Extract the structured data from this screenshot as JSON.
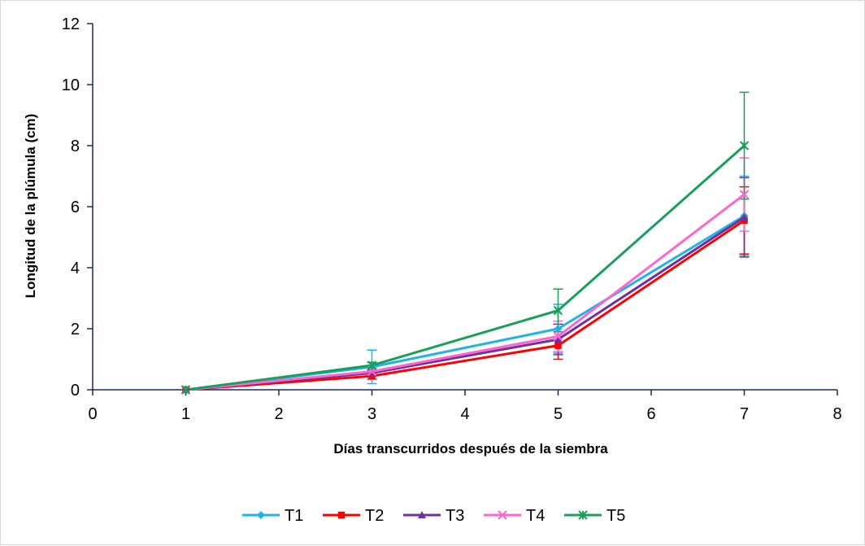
{
  "chart_data": {
    "type": "line",
    "title": "",
    "xlabel": "Días transcurridos después de la siembra",
    "ylabel": "Longitud de la plúmula (cm)",
    "xlim": [
      0,
      8
    ],
    "ylim": [
      0,
      12
    ],
    "x_ticks": [
      0,
      1,
      2,
      3,
      4,
      5,
      6,
      7,
      8
    ],
    "y_ticks": [
      0,
      2,
      4,
      6,
      8,
      10,
      12
    ],
    "grid": false,
    "legend_position": "bottom",
    "x": [
      1,
      3,
      5,
      7
    ],
    "series": [
      {
        "name": "T1",
        "color": "#1fb4e6",
        "marker": "diamond",
        "values": [
          0.0,
          0.75,
          2.0,
          5.7
        ],
        "errors": [
          0,
          0.55,
          0.8,
          1.3
        ]
      },
      {
        "name": "T2",
        "color": "#ff0000",
        "marker": "square",
        "values": [
          0.0,
          0.45,
          1.45,
          5.55
        ],
        "errors": [
          0,
          0.1,
          0.45,
          1.1
        ]
      },
      {
        "name": "T3",
        "color": "#7030a0",
        "marker": "triangle",
        "values": [
          0.0,
          0.55,
          1.65,
          5.65
        ],
        "errors": [
          0,
          0.1,
          0.5,
          1.3
        ]
      },
      {
        "name": "T4",
        "color": "#ff66cc",
        "marker": "x",
        "values": [
          0.0,
          0.6,
          1.75,
          6.4
        ],
        "errors": [
          0,
          0.1,
          0.5,
          1.2
        ]
      },
      {
        "name": "T5",
        "color": "#18a05a",
        "marker": "star",
        "values": [
          0.0,
          0.8,
          2.6,
          8.0
        ],
        "errors": [
          0,
          0.1,
          0.7,
          1.75
        ]
      }
    ]
  }
}
